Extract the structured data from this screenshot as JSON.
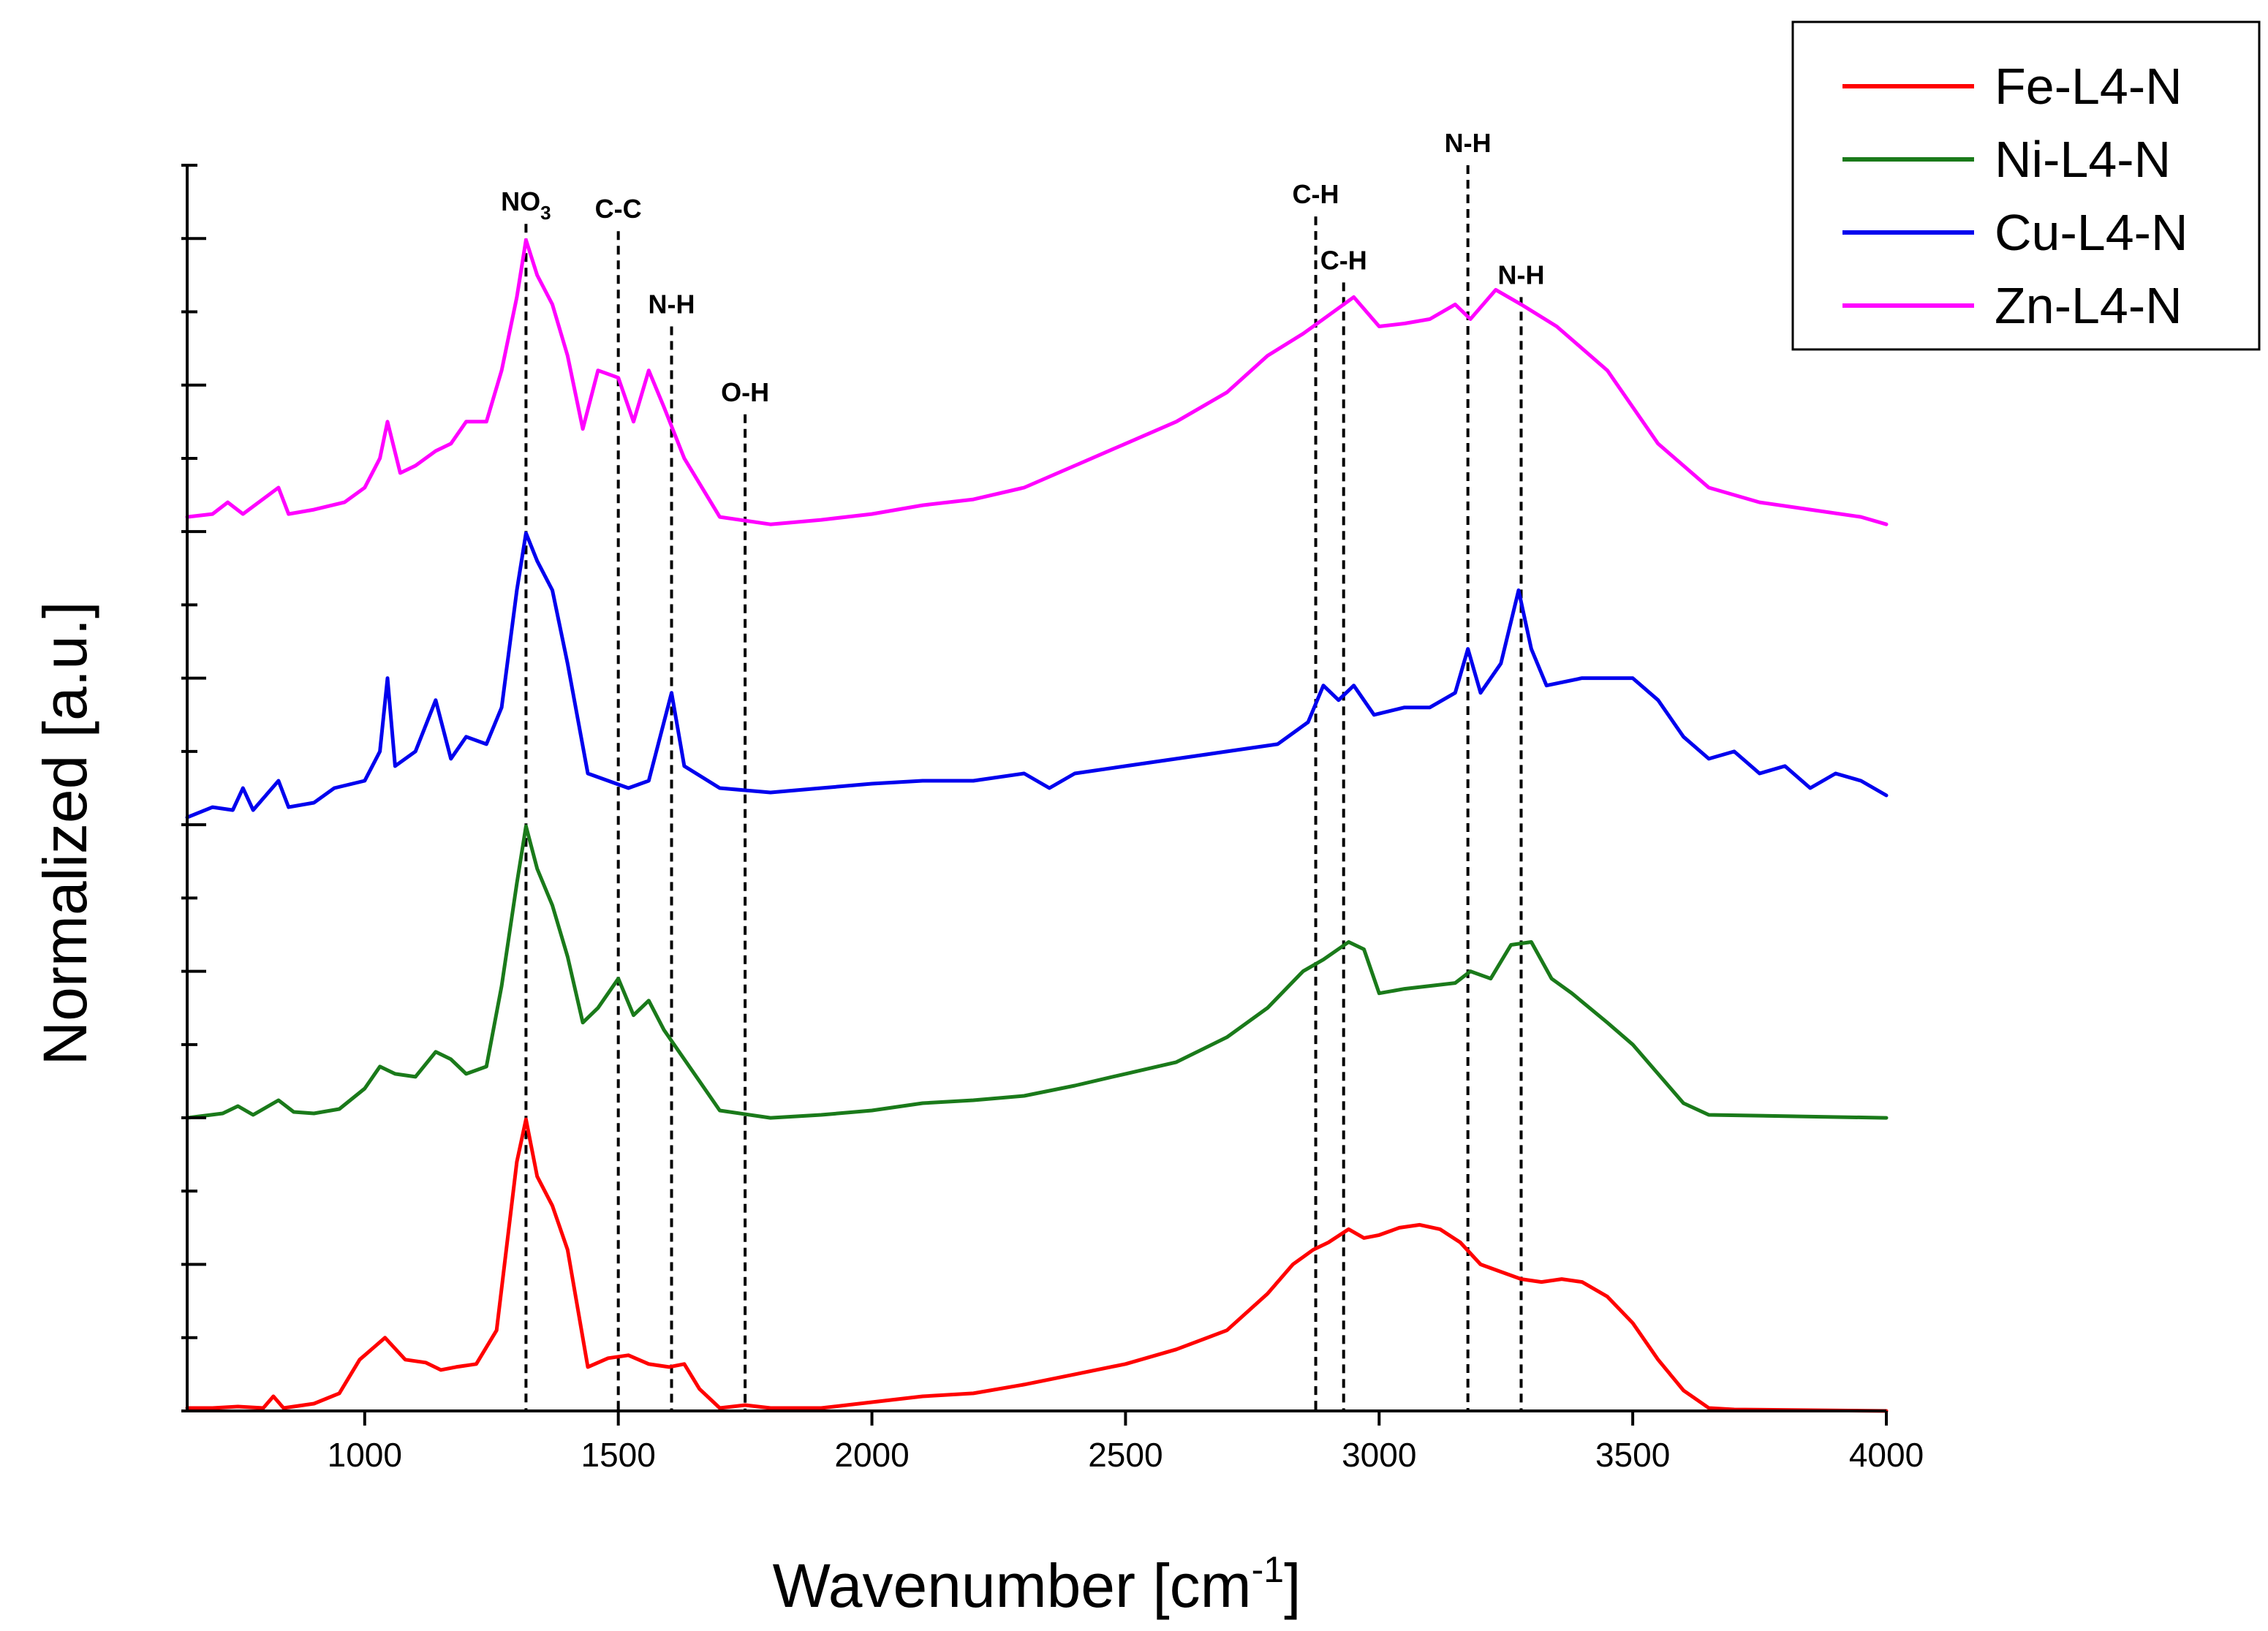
{
  "chart_data": {
    "type": "line",
    "title": "",
    "xlabel": "Wavenumber [cm-1]",
    "xlabel_main": "Wavenumber [cm",
    "xlabel_sup": "-1",
    "xlabel_end": "]",
    "ylabel": "Normalized [a.u.]",
    "xlim": [
      650,
      4000
    ],
    "ylim": [
      0,
      8.5
    ],
    "xticks": [
      1000,
      1500,
      2000,
      2500,
      3000,
      3500,
      4000
    ],
    "xtick_labels": [
      "1000",
      "1500",
      "2000",
      "2500",
      "3000",
      "3500",
      "4000"
    ],
    "yticks": [
      0,
      0.5,
      1,
      1.5,
      2,
      2.5,
      3,
      3.5,
      4,
      4.5,
      5,
      5.5,
      6,
      6.5,
      7,
      7.5,
      8,
      8.5
    ],
    "legend_position": "top-right",
    "series": [
      {
        "name": "Fe-L4-N",
        "color": "#ff0000",
        "offset": 0,
        "points": [
          [
            650,
            0.02
          ],
          [
            700,
            0.02
          ],
          [
            750,
            0.03
          ],
          [
            800,
            0.02
          ],
          [
            820,
            0.1
          ],
          [
            840,
            0.02
          ],
          [
            900,
            0.05
          ],
          [
            950,
            0.12
          ],
          [
            990,
            0.35
          ],
          [
            1040,
            0.5
          ],
          [
            1080,
            0.35
          ],
          [
            1120,
            0.33
          ],
          [
            1150,
            0.28
          ],
          [
            1180,
            0.3
          ],
          [
            1220,
            0.32
          ],
          [
            1260,
            0.55
          ],
          [
            1300,
            1.7
          ],
          [
            1318,
            1.99
          ],
          [
            1340,
            1.6
          ],
          [
            1370,
            1.4
          ],
          [
            1400,
            1.1
          ],
          [
            1440,
            0.3
          ],
          [
            1480,
            0.36
          ],
          [
            1520,
            0.38
          ],
          [
            1560,
            0.32
          ],
          [
            1600,
            0.3
          ],
          [
            1630,
            0.32
          ],
          [
            1660,
            0.15
          ],
          [
            1700,
            0.02
          ],
          [
            1750,
            0.04
          ],
          [
            1800,
            0.02
          ],
          [
            1900,
            0.02
          ],
          [
            2000,
            0.06
          ],
          [
            2100,
            0.1
          ],
          [
            2200,
            0.12
          ],
          [
            2300,
            0.18
          ],
          [
            2400,
            0.25
          ],
          [
            2500,
            0.32
          ],
          [
            2600,
            0.42
          ],
          [
            2700,
            0.55
          ],
          [
            2780,
            0.8
          ],
          [
            2830,
            1.0
          ],
          [
            2870,
            1.1
          ],
          [
            2900,
            1.15
          ],
          [
            2940,
            1.24
          ],
          [
            2970,
            1.18
          ],
          [
            3000,
            1.2
          ],
          [
            3040,
            1.25
          ],
          [
            3080,
            1.27
          ],
          [
            3120,
            1.24
          ],
          [
            3160,
            1.15
          ],
          [
            3200,
            1.0
          ],
          [
            3240,
            0.95
          ],
          [
            3280,
            0.9
          ],
          [
            3320,
            0.88
          ],
          [
            3360,
            0.9
          ],
          [
            3400,
            0.88
          ],
          [
            3450,
            0.78
          ],
          [
            3500,
            0.6
          ],
          [
            3550,
            0.35
          ],
          [
            3600,
            0.14
          ],
          [
            3650,
            0.02
          ],
          [
            3700,
            0.01
          ],
          [
            4000,
            0.0
          ]
        ]
      },
      {
        "name": "Ni-L4-N",
        "color": "#1a7a1a",
        "offset": 2,
        "points": [
          [
            650,
            0.0
          ],
          [
            720,
            0.03
          ],
          [
            750,
            0.08
          ],
          [
            780,
            0.02
          ],
          [
            830,
            0.12
          ],
          [
            860,
            0.04
          ],
          [
            900,
            0.03
          ],
          [
            950,
            0.06
          ],
          [
            1000,
            0.2
          ],
          [
            1030,
            0.35
          ],
          [
            1060,
            0.3
          ],
          [
            1100,
            0.28
          ],
          [
            1140,
            0.45
          ],
          [
            1170,
            0.4
          ],
          [
            1200,
            0.3
          ],
          [
            1240,
            0.35
          ],
          [
            1270,
            0.9
          ],
          [
            1300,
            1.6
          ],
          [
            1318,
            1.99
          ],
          [
            1340,
            1.7
          ],
          [
            1370,
            1.45
          ],
          [
            1400,
            1.1
          ],
          [
            1430,
            0.65
          ],
          [
            1460,
            0.75
          ],
          [
            1500,
            0.95
          ],
          [
            1530,
            0.7
          ],
          [
            1560,
            0.8
          ],
          [
            1590,
            0.6
          ],
          [
            1630,
            0.4
          ],
          [
            1660,
            0.25
          ],
          [
            1700,
            0.05
          ],
          [
            1800,
            0.0
          ],
          [
            1900,
            0.02
          ],
          [
            2000,
            0.05
          ],
          [
            2100,
            0.1
          ],
          [
            2200,
            0.12
          ],
          [
            2300,
            0.15
          ],
          [
            2400,
            0.22
          ],
          [
            2500,
            0.3
          ],
          [
            2600,
            0.38
          ],
          [
            2700,
            0.55
          ],
          [
            2780,
            0.75
          ],
          [
            2850,
            1.0
          ],
          [
            2890,
            1.08
          ],
          [
            2940,
            1.2
          ],
          [
            2970,
            1.15
          ],
          [
            3000,
            0.85
          ],
          [
            3050,
            0.88
          ],
          [
            3100,
            0.9
          ],
          [
            3150,
            0.92
          ],
          [
            3180,
            1.0
          ],
          [
            3220,
            0.95
          ],
          [
            3260,
            1.18
          ],
          [
            3300,
            1.2
          ],
          [
            3340,
            0.95
          ],
          [
            3380,
            0.85
          ],
          [
            3450,
            0.65
          ],
          [
            3500,
            0.5
          ],
          [
            3550,
            0.3
          ],
          [
            3600,
            0.1
          ],
          [
            3650,
            0.02
          ],
          [
            4000,
            0.0
          ]
        ]
      },
      {
        "name": "Cu-L4-N",
        "color": "#0000ee",
        "offset": 4,
        "points": [
          [
            650,
            0.05
          ],
          [
            700,
            0.12
          ],
          [
            740,
            0.1
          ],
          [
            760,
            0.25
          ],
          [
            780,
            0.1
          ],
          [
            830,
            0.3
          ],
          [
            850,
            0.12
          ],
          [
            900,
            0.15
          ],
          [
            940,
            0.25
          ],
          [
            1000,
            0.3
          ],
          [
            1030,
            0.5
          ],
          [
            1045,
            1.0
          ],
          [
            1060,
            0.4
          ],
          [
            1100,
            0.5
          ],
          [
            1140,
            0.85
          ],
          [
            1170,
            0.45
          ],
          [
            1200,
            0.6
          ],
          [
            1240,
            0.55
          ],
          [
            1270,
            0.8
          ],
          [
            1300,
            1.6
          ],
          [
            1318,
            1.99
          ],
          [
            1340,
            1.8
          ],
          [
            1370,
            1.6
          ],
          [
            1400,
            1.1
          ],
          [
            1440,
            0.35
          ],
          [
            1480,
            0.3
          ],
          [
            1520,
            0.25
          ],
          [
            1560,
            0.3
          ],
          [
            1590,
            0.7
          ],
          [
            1605,
            0.9
          ],
          [
            1630,
            0.4
          ],
          [
            1700,
            0.25
          ],
          [
            1800,
            0.22
          ],
          [
            1900,
            0.25
          ],
          [
            2000,
            0.28
          ],
          [
            2100,
            0.3
          ],
          [
            2200,
            0.3
          ],
          [
            2300,
            0.35
          ],
          [
            2350,
            0.25
          ],
          [
            2400,
            0.35
          ],
          [
            2500,
            0.4
          ],
          [
            2600,
            0.45
          ],
          [
            2700,
            0.5
          ],
          [
            2800,
            0.55
          ],
          [
            2860,
            0.7
          ],
          [
            2890,
            0.95
          ],
          [
            2920,
            0.85
          ],
          [
            2950,
            0.95
          ],
          [
            2990,
            0.75
          ],
          [
            3050,
            0.8
          ],
          [
            3100,
            0.8
          ],
          [
            3150,
            0.9
          ],
          [
            3175,
            1.2
          ],
          [
            3200,
            0.9
          ],
          [
            3240,
            1.1
          ],
          [
            3275,
            1.6
          ],
          [
            3300,
            1.2
          ],
          [
            3330,
            0.95
          ],
          [
            3400,
            1.0
          ],
          [
            3500,
            1.0
          ],
          [
            3550,
            0.85
          ],
          [
            3600,
            0.6
          ],
          [
            3650,
            0.45
          ],
          [
            3700,
            0.5
          ],
          [
            3750,
            0.35
          ],
          [
            3800,
            0.4
          ],
          [
            3850,
            0.25
          ],
          [
            3900,
            0.35
          ],
          [
            3950,
            0.3
          ],
          [
            4000,
            0.2
          ]
        ]
      },
      {
        "name": "Zn-L4-N",
        "color": "#ff00ff",
        "offset": 6,
        "points": [
          [
            650,
            0.1
          ],
          [
            700,
            0.12
          ],
          [
            730,
            0.2
          ],
          [
            760,
            0.12
          ],
          [
            830,
            0.3
          ],
          [
            850,
            0.12
          ],
          [
            900,
            0.15
          ],
          [
            960,
            0.2
          ],
          [
            1000,
            0.3
          ],
          [
            1030,
            0.5
          ],
          [
            1045,
            0.75
          ],
          [
            1070,
            0.4
          ],
          [
            1100,
            0.45
          ],
          [
            1140,
            0.55
          ],
          [
            1170,
            0.6
          ],
          [
            1200,
            0.75
          ],
          [
            1240,
            0.75
          ],
          [
            1270,
            1.1
          ],
          [
            1300,
            1.6
          ],
          [
            1318,
            1.99
          ],
          [
            1340,
            1.75
          ],
          [
            1370,
            1.55
          ],
          [
            1400,
            1.2
          ],
          [
            1430,
            0.7
          ],
          [
            1460,
            1.1
          ],
          [
            1500,
            1.05
          ],
          [
            1530,
            0.75
          ],
          [
            1560,
            1.1
          ],
          [
            1590,
            0.85
          ],
          [
            1630,
            0.5
          ],
          [
            1700,
            0.1
          ],
          [
            1800,
            0.05
          ],
          [
            1900,
            0.08
          ],
          [
            2000,
            0.12
          ],
          [
            2100,
            0.18
          ],
          [
            2200,
            0.22
          ],
          [
            2300,
            0.3
          ],
          [
            2400,
            0.45
          ],
          [
            2500,
            0.6
          ],
          [
            2600,
            0.75
          ],
          [
            2700,
            0.95
          ],
          [
            2780,
            1.2
          ],
          [
            2850,
            1.35
          ],
          [
            2890,
            1.45
          ],
          [
            2950,
            1.6
          ],
          [
            3000,
            1.4
          ],
          [
            3050,
            1.42
          ],
          [
            3100,
            1.45
          ],
          [
            3150,
            1.55
          ],
          [
            3180,
            1.45
          ],
          [
            3230,
            1.65
          ],
          [
            3280,
            1.55
          ],
          [
            3350,
            1.4
          ],
          [
            3450,
            1.1
          ],
          [
            3550,
            0.6
          ],
          [
            3650,
            0.3
          ],
          [
            3750,
            0.2
          ],
          [
            3850,
            0.15
          ],
          [
            3950,
            0.1
          ],
          [
            4000,
            0.05
          ]
        ]
      }
    ],
    "annotations": [
      {
        "label": "NO",
        "sub": "3",
        "x": 1318,
        "y_top": 8.1
      },
      {
        "label": "C-C",
        "x": 1500,
        "y_top": 8.05
      },
      {
        "label": "N-H",
        "x": 1605,
        "y_top": 7.4
      },
      {
        "label": "O-H",
        "x": 1750,
        "y_top": 6.8
      },
      {
        "label": "C-H",
        "x": 2875,
        "y_top": 8.15
      },
      {
        "label": "C-H",
        "x": 2930,
        "y_top": 7.7
      },
      {
        "label": "N-H",
        "x": 3175,
        "y_top": 8.5
      },
      {
        "label": "N-H",
        "x": 3280,
        "y_top": 7.6
      }
    ]
  }
}
